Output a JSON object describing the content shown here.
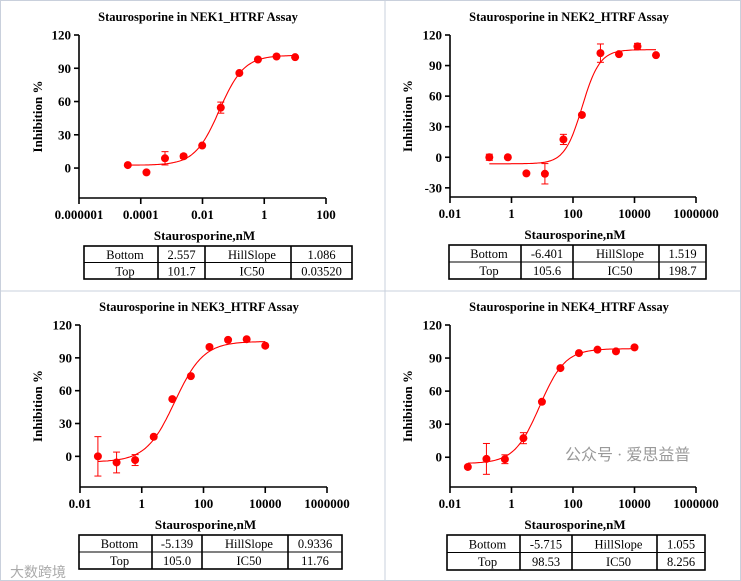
{
  "watermarks": {
    "left": "大数跨境",
    "right": "公众号 · 爱思益普"
  },
  "chart_data": [
    {
      "type": "scatter",
      "title": "Staurosporine in NEK1_HTRF Assay",
      "xlabel": "Staurosporine,nM",
      "ylabel": "Inhibition %",
      "xscale": "log",
      "xlim": [
        1e-06,
        100
      ],
      "ylim": [
        -27,
        120
      ],
      "xticks": [
        1e-06,
        0.0001,
        0.01,
        1,
        100
      ],
      "xtick_labels": [
        "0.000001",
        "0.0001",
        "0.01",
        "1",
        "100"
      ],
      "yticks": [
        0,
        30,
        60,
        90,
        120
      ],
      "ytick_labels": [
        "0",
        "30",
        "60",
        "90",
        "120"
      ],
      "color": "#ff0000",
      "x": [
        3.81e-05,
        0.000153,
        0.00061,
        0.00244,
        0.00977,
        0.0391,
        0.156,
        0.625,
        2.5,
        10
      ],
      "y": [
        2.7,
        -3.9,
        8.8,
        10.6,
        20.3,
        54.5,
        85.7,
        97.9,
        100.6,
        100
      ],
      "err": [
        0,
        0,
        6,
        2,
        0,
        5,
        0,
        0,
        0,
        0
      ],
      "fit": {
        "bottom": 2.557,
        "top": 101.7,
        "ic50": 0.0352,
        "hill": 1.086
      },
      "table": [
        [
          "Bottom",
          "2.557",
          "HillSlope",
          "1.086"
        ],
        [
          "Top",
          "101.7",
          "IC50",
          "0.03520"
        ]
      ]
    },
    {
      "type": "scatter",
      "title": "Staurosporine in NEK2_HTRF Assay",
      "xlabel": "Staurosporine,nM",
      "ylabel": "Inhibition %",
      "xscale": "log",
      "xlim": [
        0.01,
        1000000
      ],
      "ylim": [
        -39,
        120
      ],
      "xticks": [
        0.01,
        1,
        100,
        10000,
        1000000
      ],
      "xtick_labels": [
        "0.01",
        "1",
        "100",
        "10000",
        "1000000"
      ],
      "yticks": [
        -30,
        0,
        30,
        60,
        90,
        120
      ],
      "ytick_labels": [
        "-30",
        "0",
        "30",
        "60",
        "90",
        "120"
      ],
      "color": "#ff0000",
      "x": [
        0.19,
        0.76,
        3.05,
        12.2,
        48.8,
        195,
        781,
        3125,
        12500,
        50000
      ],
      "y": [
        0,
        0,
        -15.8,
        -16.2,
        17.5,
        41.5,
        102.2,
        101.2,
        108.8,
        100.2
      ],
      "err": [
        3,
        0,
        0,
        10,
        5,
        0,
        9,
        0,
        3,
        0
      ],
      "fit": {
        "bottom": -6.401,
        "top": 105.6,
        "ic50": 198.7,
        "hill": 1.519
      },
      "table": [
        [
          "Bottom",
          "-6.401",
          "HillSlope",
          "1.519"
        ],
        [
          "Top",
          "105.6",
          "IC50",
          "198.7"
        ]
      ]
    },
    {
      "type": "scatter",
      "title": "Staurosporine in NEK3_HTRF Assay",
      "xlabel": "Staurosporine,nM",
      "ylabel": "Inhibition %",
      "xscale": "log",
      "xlim": [
        0.01,
        1000000
      ],
      "ylim": [
        -28,
        120
      ],
      "xticks": [
        0.01,
        1,
        100,
        10000,
        1000000
      ],
      "xtick_labels": [
        "0.01",
        "1",
        "100",
        "10000",
        "1000000"
      ],
      "yticks": [
        0,
        30,
        60,
        90,
        120
      ],
      "ytick_labels": [
        "0",
        "30",
        "60",
        "90",
        "120"
      ],
      "color": "#ff0000",
      "x": [
        0.038,
        0.153,
        0.61,
        2.44,
        9.77,
        39,
        156,
        625,
        2500,
        10000
      ],
      "y": [
        0,
        -5.6,
        -3.4,
        17.9,
        52.3,
        73.3,
        99.9,
        106.4,
        107,
        101.1
      ],
      "err": [
        18,
        9.5,
        5,
        0,
        0,
        0,
        0,
        0,
        0,
        0
      ],
      "fit": {
        "bottom": -5.139,
        "top": 105.0,
        "ic50": 11.76,
        "hill": 0.9336
      },
      "table": [
        [
          "Bottom",
          "-5.139",
          "HillSlope",
          "0.9336"
        ],
        [
          "Top",
          "105.0",
          "IC50",
          "11.76"
        ]
      ]
    },
    {
      "type": "scatter",
      "title": "Staurosporine in NEK4_HTRF Assay",
      "xlabel": "Staurosporine,nM",
      "ylabel": "Inhibition %",
      "xscale": "log",
      "xlim": [
        0.01,
        1000000
      ],
      "ylim": [
        -27,
        120
      ],
      "xticks": [
        0.01,
        1,
        100,
        10000,
        1000000
      ],
      "xtick_labels": [
        "0.01",
        "1",
        "100",
        "10000",
        "1000000"
      ],
      "yticks": [
        0,
        30,
        60,
        90,
        120
      ],
      "ytick_labels": [
        "0",
        "30",
        "60",
        "90",
        "120"
      ],
      "color": "#ff0000",
      "x": [
        0.038,
        0.153,
        0.61,
        2.44,
        9.77,
        39,
        156,
        625,
        2500,
        10000
      ],
      "y": [
        -8.8,
        -1.5,
        -1.8,
        17.3,
        50.3,
        80.9,
        94.5,
        97.6,
        96.1,
        99.7
      ],
      "err": [
        0,
        14,
        4,
        5,
        0,
        0,
        0,
        0,
        0,
        0
      ],
      "fit": {
        "bottom": -5.715,
        "top": 98.53,
        "ic50": 8.256,
        "hill": 1.055
      },
      "table": [
        [
          "Bottom",
          "-5.715",
          "HillSlope",
          "1.055"
        ],
        [
          "Top",
          "98.53",
          "IC50",
          "8.256"
        ]
      ]
    }
  ]
}
